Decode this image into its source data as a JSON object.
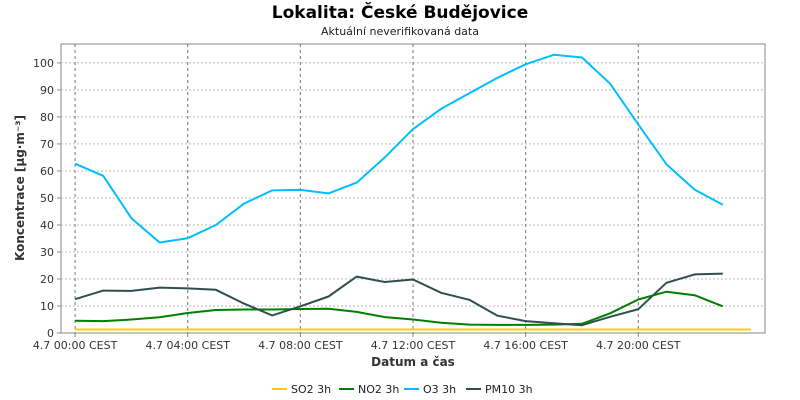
{
  "chart_data": {
    "type": "line",
    "title": "Lokalita: České Budějovice",
    "subtitle": "Aktuální neverifikovaná data",
    "xlabel": "Datum a čas",
    "ylabel": "Koncentrace [µg·m⁻³]",
    "ylim": [
      0,
      107
    ],
    "yticks": [
      0,
      10,
      20,
      30,
      40,
      50,
      60,
      70,
      80,
      90,
      100
    ],
    "xlim": [
      -0.5,
      24.5
    ],
    "xticks": [
      {
        "value": 0,
        "label": "4.7 00:00 CEST"
      },
      {
        "value": 4,
        "label": "4.7 04:00 CEST"
      },
      {
        "value": 8,
        "label": "4.7 08:00 CEST"
      },
      {
        "value": 12,
        "label": "4.7 12:00 CEST"
      },
      {
        "value": 16,
        "label": "4.7 16:00 CEST"
      },
      {
        "value": 20,
        "label": "4.7 20:00 CEST"
      }
    ],
    "grid": true,
    "legend": "bottom",
    "x": [
      0,
      1,
      2,
      3,
      4,
      5,
      6,
      7,
      8,
      9,
      10,
      11,
      12,
      13,
      14,
      15,
      16,
      17,
      18,
      19,
      20,
      21,
      22,
      23,
      24
    ],
    "series": [
      {
        "name": "SO2 3h",
        "color": "#ffcc00",
        "values": [
          1.3,
          1.3,
          1.3,
          1.3,
          1.3,
          1.3,
          1.3,
          1.3,
          1.3,
          1.3,
          1.3,
          1.3,
          1.3,
          1.3,
          1.3,
          1.3,
          1.3,
          1.3,
          1.3,
          1.3,
          1.3,
          1.3,
          1.3,
          1.3,
          1.3
        ]
      },
      {
        "name": "NO2 3h",
        "color": "#008000",
        "values": [
          4.5,
          4.4,
          5,
          5.8,
          7.4,
          8.5,
          8.7,
          8.7,
          8.9,
          9,
          7.8,
          5.9,
          5,
          3.8,
          3.1,
          3,
          3,
          3.1,
          3.4,
          7.3,
          12.4,
          15.3,
          14,
          9.9,
          null
        ]
      },
      {
        "name": "O3 3h",
        "color": "#00bfff",
        "values": [
          62.7,
          58.2,
          42.5,
          33.5,
          35.1,
          40,
          47.9,
          52.8,
          53,
          51.7,
          55.7,
          65,
          75.5,
          83,
          88.8,
          94.5,
          99.5,
          103,
          102,
          92.3,
          77.2,
          62.5,
          53.1,
          47.5,
          null
        ]
      },
      {
        "name": "PM10 3h",
        "color": "#2f4f4f",
        "values": [
          12.5,
          15.7,
          15.6,
          16.8,
          16.5,
          16,
          10.9,
          6.5,
          9.9,
          13.5,
          20.9,
          18.9,
          19.8,
          14.9,
          12.3,
          6.4,
          4.4,
          3.6,
          2.9,
          6,
          8.8,
          18.6,
          21.7,
          22,
          null
        ]
      }
    ]
  }
}
